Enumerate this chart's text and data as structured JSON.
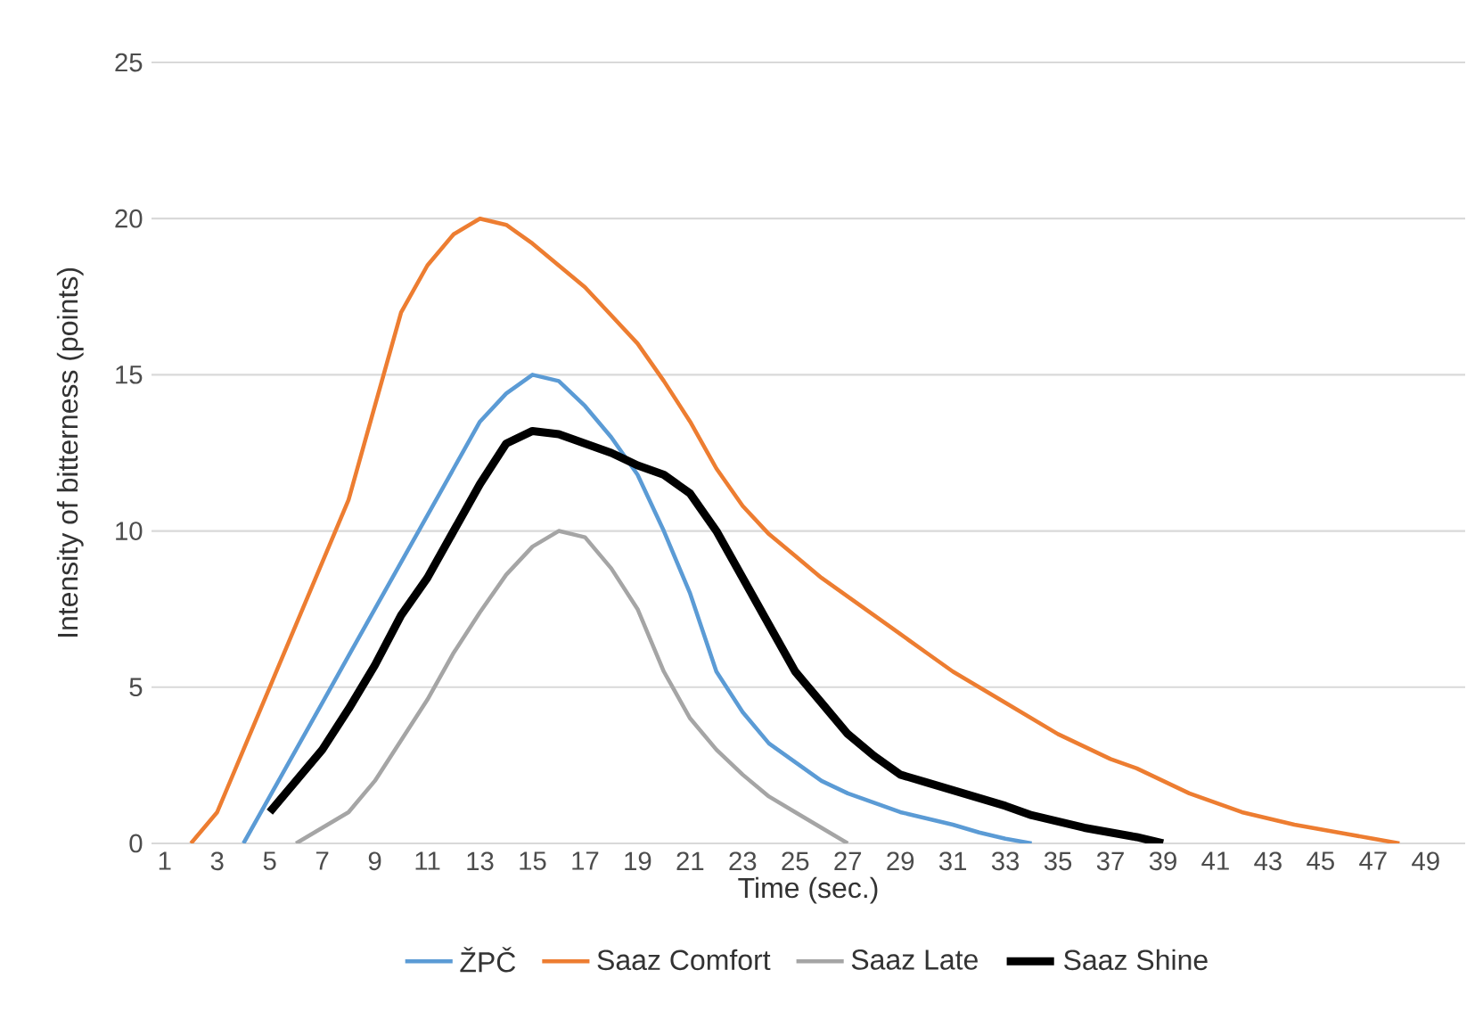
{
  "chart_data": {
    "type": "line",
    "xlabel": "Time (sec.)",
    "ylabel": "Intensity of bitterness (points)",
    "xlim": [
      0.5,
      50.5
    ],
    "xticks": [
      1,
      3,
      5,
      7,
      9,
      11,
      13,
      15,
      17,
      19,
      21,
      23,
      25,
      27,
      29,
      31,
      33,
      35,
      37,
      39,
      41,
      43,
      45,
      47,
      49
    ],
    "ylim": [
      0,
      25
    ],
    "yticks": [
      0,
      5,
      10,
      15,
      20,
      25
    ],
    "grid": "y",
    "legend": "bottom",
    "marker": "none",
    "line_style": "solid",
    "series": [
      {
        "name": "ŽPČ",
        "color": "#5b9bd5",
        "x": [
          4,
          5,
          6,
          7,
          8,
          9,
          10,
          11,
          12,
          13,
          14,
          15,
          16,
          17,
          18,
          19,
          20,
          21,
          22,
          23,
          24,
          25,
          26,
          27,
          28,
          29,
          30,
          31,
          32,
          33,
          34
        ],
        "values": [
          0,
          1.5,
          3,
          4.5,
          6,
          7.5,
          9,
          10.5,
          12,
          13.5,
          14.4,
          15,
          14.8,
          14,
          13,
          11.8,
          10,
          8,
          5.5,
          4.2,
          3.2,
          2.6,
          2,
          1.6,
          1.3,
          1,
          0.8,
          0.6,
          0.35,
          0.15,
          0
        ]
      },
      {
        "name": "Saaz Comfort",
        "color": "#ed7d31",
        "x": [
          2,
          3,
          4,
          5,
          6,
          7,
          8,
          9,
          10,
          11,
          12,
          13,
          14,
          15,
          16,
          17,
          18,
          19,
          20,
          21,
          22,
          23,
          24,
          25,
          26,
          27,
          28,
          29,
          30,
          31,
          32,
          33,
          34,
          35,
          36,
          37,
          38,
          39,
          40,
          41,
          42,
          43,
          44,
          45,
          46,
          47,
          48
        ],
        "values": [
          0,
          1,
          3,
          5,
          7,
          9,
          11,
          14,
          17,
          18.5,
          19.5,
          20,
          19.8,
          19.2,
          18.5,
          17.8,
          16.9,
          16,
          14.8,
          13.5,
          12,
          10.8,
          9.9,
          9.2,
          8.5,
          7.9,
          7.3,
          6.7,
          6.1,
          5.5,
          5,
          4.5,
          4,
          3.5,
          3.1,
          2.7,
          2.4,
          2,
          1.6,
          1.3,
          1,
          0.8,
          0.6,
          0.45,
          0.3,
          0.15,
          0
        ]
      },
      {
        "name": "Saaz Late",
        "color": "#a5a5a5",
        "x": [
          6,
          7,
          8,
          9,
          10,
          11,
          12,
          13,
          14,
          15,
          16,
          17,
          18,
          19,
          20,
          21,
          22,
          23,
          24,
          25,
          26,
          27
        ],
        "values": [
          0,
          0.5,
          1,
          2,
          3.3,
          4.6,
          6.1,
          7.4,
          8.6,
          9.5,
          10,
          9.8,
          8.8,
          7.5,
          5.5,
          4,
          3,
          2.2,
          1.5,
          1,
          0.5,
          0
        ]
      },
      {
        "name": "Saaz Shine",
        "color": "#000000",
        "x": [
          5,
          6,
          7,
          8,
          9,
          10,
          11,
          12,
          13,
          14,
          15,
          16,
          17,
          18,
          19,
          20,
          21,
          22,
          23,
          24,
          25,
          26,
          27,
          28,
          29,
          30,
          31,
          32,
          33,
          34,
          35,
          36,
          37,
          38,
          39
        ],
        "values": [
          1,
          2,
          3,
          4.3,
          5.7,
          7.3,
          8.5,
          10,
          11.5,
          12.8,
          13.2,
          13.1,
          12.8,
          12.5,
          12.1,
          11.8,
          11.2,
          10,
          8.5,
          7,
          5.5,
          4.5,
          3.5,
          2.8,
          2.2,
          1.95,
          1.7,
          1.45,
          1.2,
          0.9,
          0.7,
          0.5,
          0.35,
          0.2,
          0
        ]
      }
    ]
  }
}
